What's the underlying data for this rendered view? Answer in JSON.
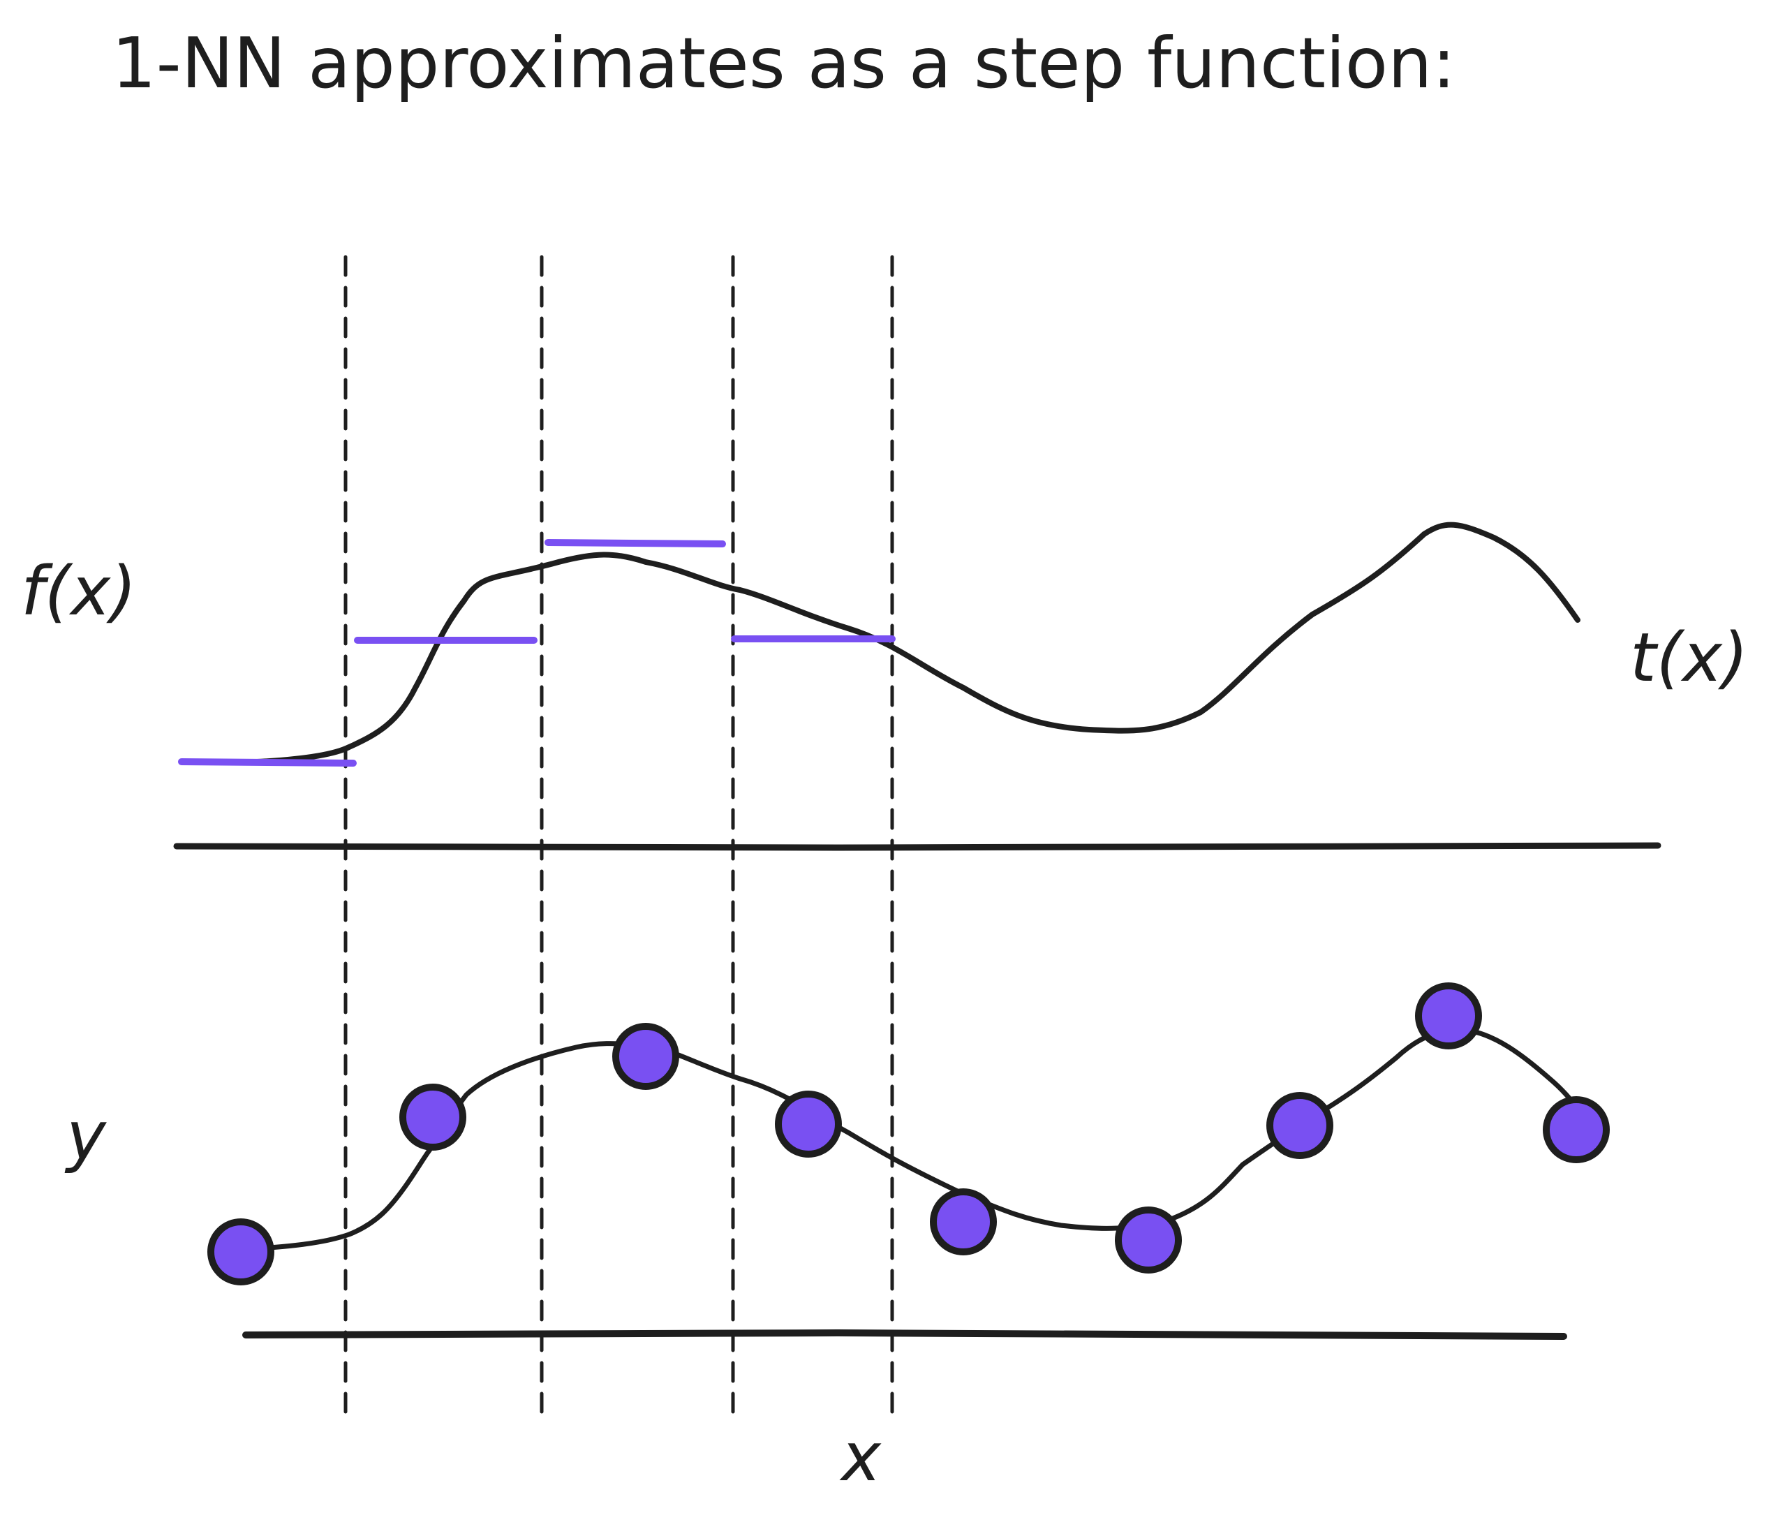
{
  "title": "1-NN approximates as a step function:",
  "labels": {
    "top_left": "f(x)",
    "top_right": "t(x)",
    "bottom_left": "y",
    "bottom_axis": "x"
  },
  "colors": {
    "ink": "#1e1e1e",
    "accent": "#7950f2",
    "background": "#ffffff"
  },
  "step_segments": [
    {
      "x_from": 0.0,
      "x_to": 1.3,
      "level": 0.0
    },
    {
      "x_from": 1.3,
      "x_to": 2.8,
      "level": 1.0
    },
    {
      "x_from": 2.8,
      "x_to": 4.2,
      "level": 1.8
    },
    {
      "x_from": 4.2,
      "x_to": 5.4,
      "level": 1.0
    }
  ],
  "sample_points": [
    {
      "x": 0.0,
      "y": 0.0
    },
    {
      "x": 1.8,
      "y": 1.2
    },
    {
      "x": 3.0,
      "y": 1.8
    },
    {
      "x": 4.4,
      "y": 1.1
    },
    {
      "x": 5.6,
      "y": 0.2
    },
    {
      "x": 7.0,
      "y": 0.1
    },
    {
      "x": 8.2,
      "y": 1.1
    },
    {
      "x": 9.3,
      "y": 2.0
    },
    {
      "x": 10.3,
      "y": 1.1
    }
  ]
}
